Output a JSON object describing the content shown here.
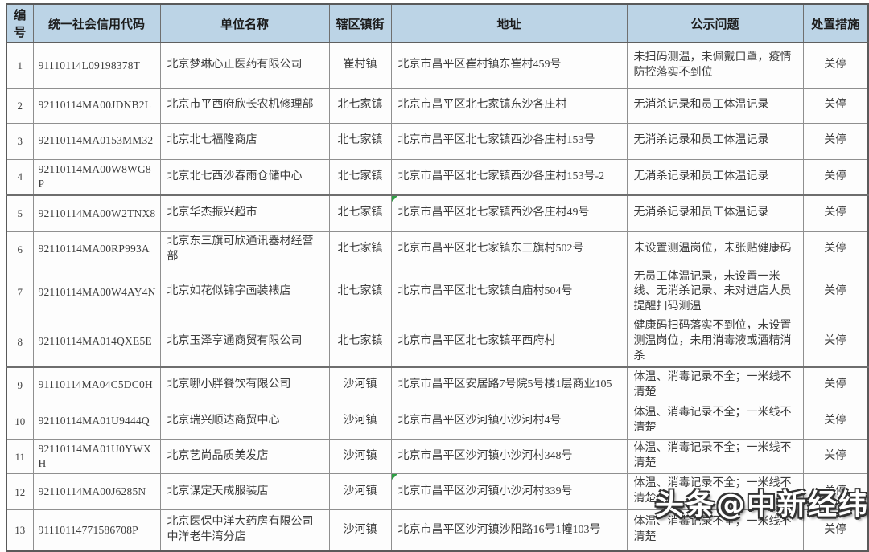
{
  "table": {
    "headers": [
      "编号",
      "统一社会信用代码",
      "单位名称",
      "辖区镇街",
      "地址",
      "公示问题",
      "处置措施"
    ],
    "rows": [
      {
        "idx": "1",
        "code": "91110114L09198378T",
        "name": "北京梦琳心正医药有限公司",
        "town": "崔村镇",
        "address": "北京市昌平区崔村镇东崔村459号",
        "problem": "未扫码测温，未佩戴口罩，疫情防控落实不到位",
        "measure": "关停"
      },
      {
        "idx": "2",
        "code": "92110114MA00JDNB2L",
        "name": "北京市平西府欣长农机修理部",
        "town": "北七家镇",
        "address": "北京市昌平区北七家镇东沙各庄村",
        "problem": "无消杀记录和员工体温记录",
        "measure": "关停"
      },
      {
        "idx": "3",
        "code": "92110114MA0153MM32",
        "name": "北京北七福隆商店",
        "town": "北七家镇",
        "address": "北京市昌平区北七家镇西沙各庄村153号",
        "problem": "无消杀记录和员工体温记录",
        "measure": "关停"
      },
      {
        "idx": "4",
        "code": "92110114MA00W8WG8P",
        "name": "北京北七西沙春雨仓储中心",
        "town": "北七家镇",
        "address": "北京市昌平区北七家镇西沙各庄村153号-2",
        "problem": "无消杀记录和员工体温记录",
        "measure": "关停"
      },
      {
        "idx": "5",
        "code": "92110114MA00W2TNX8",
        "name": "北京华杰振兴超市",
        "town": "北七家镇",
        "address": "北京市昌平区北七家镇西沙各庄村49号",
        "problem": "无消杀记录和员工体温记录",
        "measure": "关停"
      },
      {
        "idx": "6",
        "code": "92110114MA00RP993A",
        "name": "北京东三旗可欣通讯器材经营部",
        "town": "北七家镇",
        "address": "北京市昌平区北七家镇东三旗村502号",
        "problem": "未设置测温岗位，未张贴健康码",
        "measure": "关停"
      },
      {
        "idx": "7",
        "code": "92110114MA00W4AY4N",
        "name": "北京如花似锦字画装裱店",
        "town": "北七家镇",
        "address": "北京市昌平区北七家镇白庙村504号",
        "problem": "无员工体温记录，未设置一米线、无消杀记录、未对进店人员提醒扫码测温",
        "measure": "关停"
      },
      {
        "idx": "8",
        "code": "92110114MA014QXE5E",
        "name": "北京玉泽亨通商贸有限公司",
        "town": "北七家镇",
        "address": "北京市昌平区北七家镇平西府村",
        "problem": "健康码扫码落实不到位，未设置测温岗位，未用消毒液或酒精消杀",
        "measure": "关停"
      },
      {
        "idx": "9",
        "code": "91110114MA04C5DC0H",
        "name": "北京哪小胖餐饮有限公司",
        "town": "沙河镇",
        "address": "北京市昌平区安居路7号院5号楼1层商业105",
        "problem": "体温、消毒记录不全；一米线不清楚",
        "measure": "关停"
      },
      {
        "idx": "10",
        "code": "92110114MA01U9444Q",
        "name": "北京瑞兴顺达商贸中心",
        "town": "沙河镇",
        "address": "北京市昌平区沙河镇小沙河村4号",
        "problem": "体温、消毒记录不全；一米线不清楚",
        "measure": "关停"
      },
      {
        "idx": "11",
        "code": "92110114MA01U0YWXH",
        "name": "北京艺尚品质美发店",
        "town": "沙河镇",
        "address": "北京市昌平区沙河镇小沙河村348号",
        "problem": "体温、消毒记录不全；一米线不清楚",
        "measure": "关停"
      },
      {
        "idx": "12",
        "code": "92110114MA00J6285N",
        "name": "北京谋定天成服装店",
        "town": "沙河镇",
        "address": "北京市昌平区沙河镇小沙河村339号",
        "problem": "体温、消毒记录不全；一米线不清楚",
        "measure": "关停"
      },
      {
        "idx": "13",
        "code": "91110114771586708P",
        "name": "北京医保中洋大药房有限公司中洋老牛湾分店",
        "town": "沙河镇",
        "address": "北京市昌平区沙河镇沙阳路16号1幢103号",
        "problem": "体温、消毒记录不全；一米线不清楚",
        "measure": "关停"
      }
    ]
  },
  "watermark": {
    "text": "头条@中新经纬"
  },
  "colors": {
    "header_bg": "#bcd4e6",
    "grid_line": "#8f8f8f",
    "text": "#3d3d3d",
    "green_indicator": "#2f9e44"
  }
}
